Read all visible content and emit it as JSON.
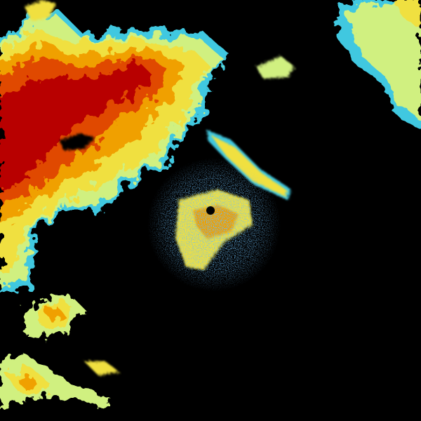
{
  "radar": {
    "background": "#000000",
    "palette": {
      "heavy": "#b80000",
      "strong": "#e04a00",
      "moderate": "#f0a000",
      "light": "#f0e040",
      "very_light": "#d0f080",
      "trace": "#40c8e0",
      "clutter": "#2070d0"
    }
  }
}
